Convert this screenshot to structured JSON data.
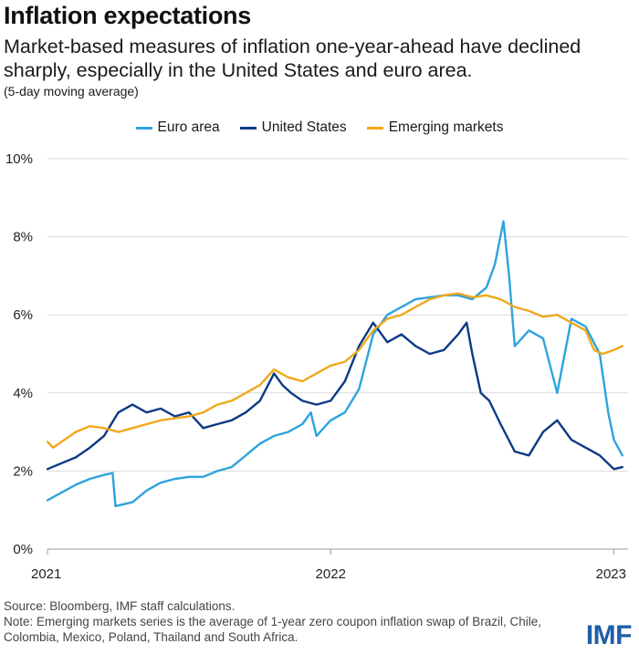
{
  "chart_data": {
    "type": "line",
    "title": "Inflation expectations",
    "subtitle": "Market-based measures of inflation one-year-ahead have declined sharply, especially in the United States and euro area.",
    "note": "(5-day moving average)",
    "x_ticks": [
      "2021",
      "2022",
      "2023"
    ],
    "y_ticks": [
      "0%",
      "2%",
      "4%",
      "6%",
      "8%",
      "10%"
    ],
    "xlim": [
      2021.0,
      2023.05
    ],
    "ylim": [
      0,
      10
    ],
    "grid": "horizontal",
    "legend_position": "top",
    "series": [
      {
        "name": "Euro area",
        "color": "#2ea3de",
        "points": [
          [
            2021.0,
            1.25
          ],
          [
            2021.05,
            1.45
          ],
          [
            2021.1,
            1.65
          ],
          [
            2021.15,
            1.8
          ],
          [
            2021.2,
            1.9
          ],
          [
            2021.23,
            1.95
          ],
          [
            2021.24,
            1.1
          ],
          [
            2021.3,
            1.2
          ],
          [
            2021.35,
            1.5
          ],
          [
            2021.4,
            1.7
          ],
          [
            2021.45,
            1.8
          ],
          [
            2021.5,
            1.85
          ],
          [
            2021.55,
            1.85
          ],
          [
            2021.6,
            2.0
          ],
          [
            2021.65,
            2.1
          ],
          [
            2021.7,
            2.4
          ],
          [
            2021.75,
            2.7
          ],
          [
            2021.8,
            2.9
          ],
          [
            2021.85,
            3.0
          ],
          [
            2021.9,
            3.2
          ],
          [
            2021.93,
            3.5
          ],
          [
            2021.95,
            2.9
          ],
          [
            2022.0,
            3.3
          ],
          [
            2022.05,
            3.5
          ],
          [
            2022.1,
            4.1
          ],
          [
            2022.15,
            5.5
          ],
          [
            2022.2,
            6.0
          ],
          [
            2022.25,
            6.2
          ],
          [
            2022.3,
            6.4
          ],
          [
            2022.35,
            6.45
          ],
          [
            2022.4,
            6.5
          ],
          [
            2022.45,
            6.5
          ],
          [
            2022.5,
            6.4
          ],
          [
            2022.55,
            6.7
          ],
          [
            2022.58,
            7.3
          ],
          [
            2022.61,
            8.4
          ],
          [
            2022.63,
            7.0
          ],
          [
            2022.65,
            5.2
          ],
          [
            2022.7,
            5.6
          ],
          [
            2022.75,
            5.4
          ],
          [
            2022.8,
            4.0
          ],
          [
            2022.85,
            5.9
          ],
          [
            2022.9,
            5.7
          ],
          [
            2022.95,
            5.0
          ],
          [
            2022.98,
            3.5
          ],
          [
            2023.0,
            2.8
          ],
          [
            2023.03,
            2.4
          ]
        ]
      },
      {
        "name": "United States",
        "color": "#0c3a84",
        "points": [
          [
            2021.0,
            2.05
          ],
          [
            2021.05,
            2.2
          ],
          [
            2021.1,
            2.35
          ],
          [
            2021.15,
            2.6
          ],
          [
            2021.2,
            2.9
          ],
          [
            2021.25,
            3.5
          ],
          [
            2021.3,
            3.7
          ],
          [
            2021.35,
            3.5
          ],
          [
            2021.4,
            3.6
          ],
          [
            2021.45,
            3.4
          ],
          [
            2021.5,
            3.5
          ],
          [
            2021.55,
            3.1
          ],
          [
            2021.6,
            3.2
          ],
          [
            2021.65,
            3.3
          ],
          [
            2021.7,
            3.5
          ],
          [
            2021.75,
            3.8
          ],
          [
            2021.8,
            4.5
          ],
          [
            2021.83,
            4.2
          ],
          [
            2021.86,
            4.0
          ],
          [
            2021.9,
            3.8
          ],
          [
            2021.95,
            3.7
          ],
          [
            2022.0,
            3.8
          ],
          [
            2022.05,
            4.3
          ],
          [
            2022.1,
            5.2
          ],
          [
            2022.15,
            5.8
          ],
          [
            2022.2,
            5.3
          ],
          [
            2022.25,
            5.5
          ],
          [
            2022.3,
            5.2
          ],
          [
            2022.35,
            5.0
          ],
          [
            2022.4,
            5.1
          ],
          [
            2022.45,
            5.5
          ],
          [
            2022.48,
            5.8
          ],
          [
            2022.5,
            5.0
          ],
          [
            2022.53,
            4.0
          ],
          [
            2022.56,
            3.8
          ],
          [
            2022.6,
            3.2
          ],
          [
            2022.65,
            2.5
          ],
          [
            2022.7,
            2.4
          ],
          [
            2022.75,
            3.0
          ],
          [
            2022.8,
            3.3
          ],
          [
            2022.85,
            2.8
          ],
          [
            2022.9,
            2.6
          ],
          [
            2022.95,
            2.4
          ],
          [
            2023.0,
            2.05
          ],
          [
            2023.03,
            2.1
          ]
        ]
      },
      {
        "name": "Emerging markets",
        "color": "#f0a81c",
        "points": [
          [
            2021.0,
            2.75
          ],
          [
            2021.02,
            2.6
          ],
          [
            2021.05,
            2.75
          ],
          [
            2021.1,
            3.0
          ],
          [
            2021.15,
            3.15
          ],
          [
            2021.2,
            3.1
          ],
          [
            2021.25,
            3.0
          ],
          [
            2021.3,
            3.1
          ],
          [
            2021.35,
            3.2
          ],
          [
            2021.4,
            3.3
          ],
          [
            2021.45,
            3.35
          ],
          [
            2021.5,
            3.4
          ],
          [
            2021.55,
            3.5
          ],
          [
            2021.6,
            3.7
          ],
          [
            2021.65,
            3.8
          ],
          [
            2021.7,
            4.0
          ],
          [
            2021.75,
            4.2
          ],
          [
            2021.8,
            4.6
          ],
          [
            2021.85,
            4.4
          ],
          [
            2021.9,
            4.3
          ],
          [
            2021.95,
            4.5
          ],
          [
            2022.0,
            4.7
          ],
          [
            2022.05,
            4.8
          ],
          [
            2022.1,
            5.1
          ],
          [
            2022.15,
            5.6
          ],
          [
            2022.2,
            5.9
          ],
          [
            2022.25,
            6.0
          ],
          [
            2022.3,
            6.2
          ],
          [
            2022.35,
            6.4
          ],
          [
            2022.4,
            6.5
          ],
          [
            2022.45,
            6.55
          ],
          [
            2022.5,
            6.45
          ],
          [
            2022.55,
            6.5
          ],
          [
            2022.6,
            6.4
          ],
          [
            2022.65,
            6.2
          ],
          [
            2022.7,
            6.1
          ],
          [
            2022.75,
            5.95
          ],
          [
            2022.8,
            6.0
          ],
          [
            2022.85,
            5.8
          ],
          [
            2022.9,
            5.6
          ],
          [
            2022.93,
            5.1
          ],
          [
            2022.96,
            5.0
          ],
          [
            2023.0,
            5.1
          ],
          [
            2023.03,
            5.2
          ]
        ]
      }
    ]
  },
  "footer": {
    "source": "Source: Bloomberg, IMF staff calculations.",
    "note": "Note: Emerging markets series is the average of 1-year zero coupon inflation swap of Brazil, Chile, Colombia, Mexico, Poland, Thailand and South Africa."
  },
  "logo": "IMF",
  "colors": {
    "grid": "#d9d9d9",
    "axis_text": "#222222",
    "logo": "#1f5fa8"
  }
}
